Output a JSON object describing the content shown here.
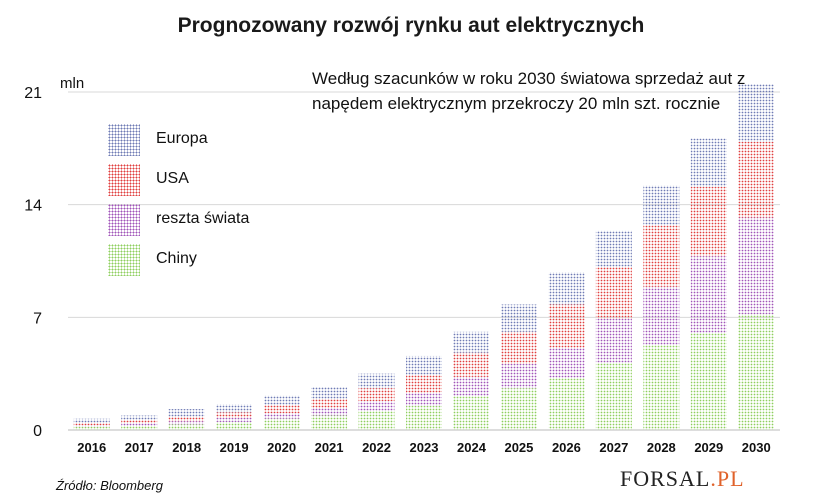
{
  "header": {
    "title": "Prognozowany rozwój rynku aut elektrycznych"
  },
  "note": "Według szacunków w roku 2030 światowa sprzedaż aut z napędem elektrycznym przekroczy 20 mln szt. rocznie",
  "unit": "mln",
  "footer": {
    "source": "Źródło: Bloomberg",
    "brand_main": "FORSAL",
    "brand_suffix": ".PL"
  },
  "legend": [
    {
      "label": "Europa",
      "color": "#6f7bb4"
    },
    {
      "label": "USA",
      "color": "#e04040"
    },
    {
      "label": "reszta świata",
      "color": "#a155b9"
    },
    {
      "label": "Chiny",
      "color": "#8fcf5f"
    }
  ],
  "chart_data": {
    "type": "bar",
    "stacked": true,
    "title": "Prognozowany rozwój rynku aut elektrycznych",
    "ylabel": "mln",
    "ylim": [
      0,
      21
    ],
    "yticks": [
      0,
      7,
      14,
      21
    ],
    "grid": true,
    "legend_position": "left",
    "categories": [
      "2016",
      "2017",
      "2018",
      "2019",
      "2020",
      "2021",
      "2022",
      "2023",
      "2024",
      "2025",
      "2026",
      "2027",
      "2028",
      "2029",
      "2030"
    ],
    "series": [
      {
        "name": "Chiny",
        "color": "#8fcf5f",
        "values": [
          0.2,
          0.25,
          0.35,
          0.5,
          0.7,
          0.9,
          1.2,
          1.5,
          2.1,
          2.6,
          3.2,
          4.2,
          5.3,
          6.0,
          7.2
        ]
      },
      {
        "name": "reszta świata",
        "color": "#a155b9",
        "values": [
          0.1,
          0.15,
          0.2,
          0.25,
          0.35,
          0.45,
          0.6,
          0.8,
          1.2,
          1.5,
          1.9,
          2.7,
          3.6,
          4.8,
          6.0
        ]
      },
      {
        "name": "USA",
        "color": "#e04040",
        "values": [
          0.15,
          0.2,
          0.3,
          0.35,
          0.5,
          0.6,
          0.8,
          1.1,
          1.5,
          2.0,
          2.7,
          3.2,
          3.8,
          4.3,
          4.7
        ]
      },
      {
        "name": "Europa",
        "color": "#6f7bb4",
        "values": [
          0.25,
          0.3,
          0.45,
          0.5,
          0.6,
          0.75,
          0.9,
          1.2,
          1.3,
          1.7,
          2.0,
          2.3,
          2.5,
          3.0,
          3.6
        ]
      }
    ]
  }
}
